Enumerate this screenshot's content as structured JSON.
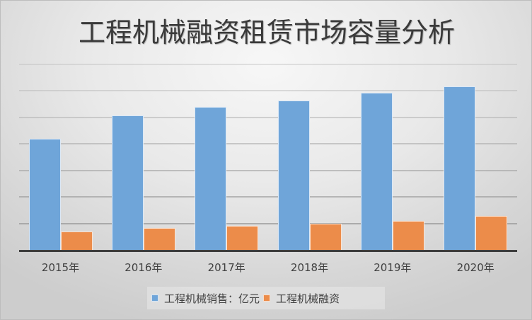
{
  "title": "工程机械融资租赁市场容量分析",
  "colors": {
    "series_sales": "#6fa5d9",
    "series_finance": "#ec8c4a",
    "gridline": "#c4c4c4",
    "axis": "#3d3d3d"
  },
  "legend": [
    {
      "label": "工程机械销售：亿元",
      "color": "#6fa5d9"
    },
    {
      "label": "工程机械融资",
      "color": "#ec8c4a"
    }
  ],
  "chart_data": {
    "type": "bar",
    "title": "工程机械融资租赁市场容量分析",
    "xlabel": "",
    "ylabel": "",
    "categories": [
      "2015年",
      "2016年",
      "2017年",
      "2018年",
      "2019年",
      "2020年"
    ],
    "series": [
      {
        "name": "工程机械销售：亿元",
        "color": "#6fa5d9",
        "values": [
          2094,
          2533,
          2693,
          2813,
          2960,
          3080
        ]
      },
      {
        "name": "工程机械融资",
        "color": "#ec8c4a",
        "values": [
          347,
          413,
          453,
          493,
          547,
          640
        ]
      }
    ],
    "ylim": [
      0,
      3500
    ],
    "gridlines": [
      0,
      500,
      1000,
      1500,
      2000,
      2500,
      3000,
      3500
    ],
    "y_tick_labels_visible": false,
    "grid": true,
    "legend_position": "bottom"
  }
}
